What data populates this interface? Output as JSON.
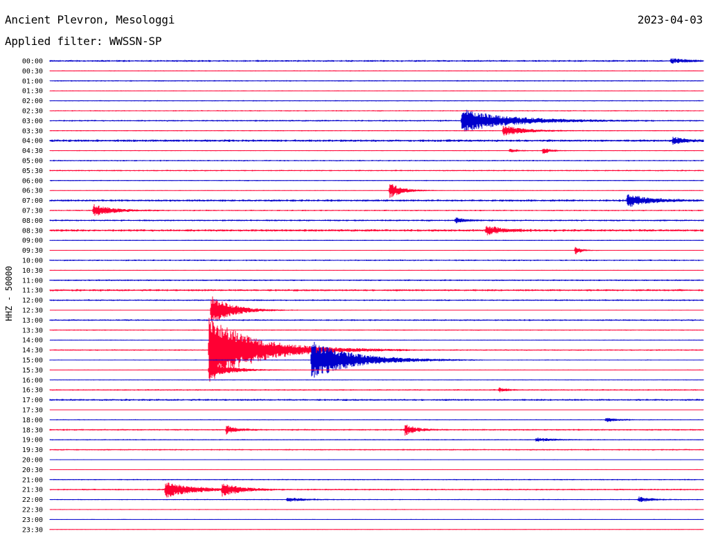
{
  "header": {
    "station": "Ancient Plevron, Mesologgi",
    "date": "2023-04-03",
    "filter": "Applied filter: WWSSN-SP"
  },
  "chart_data": {
    "type": "line",
    "title": "Ancient Plevron, Mesologgi",
    "subtitle": "Applied filter: WWSSN-SP",
    "ylabel": "HHZ - 50000",
    "row_labels": [
      "00:00",
      "00:30",
      "01:00",
      "01:30",
      "02:00",
      "02:30",
      "03:00",
      "03:30",
      "04:00",
      "04:30",
      "05:00",
      "05:30",
      "06:00",
      "06:30",
      "07:00",
      "07:30",
      "08:00",
      "08:30",
      "09:00",
      "09:30",
      "10:00",
      "10:30",
      "11:00",
      "11:30",
      "12:00",
      "12:30",
      "13:00",
      "13:30",
      "14:00",
      "14:30",
      "15:00",
      "15:30",
      "16:00",
      "16:30",
      "17:00",
      "17:30",
      "18:00",
      "18:30",
      "19:00",
      "19:30",
      "20:00",
      "20:30",
      "21:00",
      "21:30",
      "22:00",
      "22:30",
      "23:00",
      "23:30"
    ],
    "colors": {
      "even_rows": "#0000cc",
      "odd_rows": "#ff0033"
    },
    "row_minutes": 30,
    "noise_level": [
      1.2,
      0.6,
      0.8,
      0.5,
      0.7,
      0.8,
      1.0,
      0.7,
      1.5,
      0.6,
      0.9,
      0.9,
      0.7,
      0.5,
      1.4,
      0.9,
      1.1,
      1.5,
      0.7,
      0.4,
      1.0,
      0.5,
      1.0,
      1.3,
      1.0,
      0.5,
      1.0,
      0.7,
      0.5,
      0.9,
      0.6,
      0.5,
      0.5,
      0.9,
      1.2,
      0.4,
      0.6,
      1.0,
      0.7,
      0.9,
      0.5,
      0.4,
      0.8,
      1.0,
      0.7,
      0.6,
      0.5,
      0.5
    ],
    "events": [
      {
        "row": "00:00",
        "minute": 28.5,
        "amplitude": 3,
        "duration": 0.8
      },
      {
        "row": "03:00",
        "minute": 18.9,
        "amplitude": 17,
        "duration": 2.2
      },
      {
        "row": "03:30",
        "minute": 20.8,
        "amplitude": 8,
        "duration": 1.0
      },
      {
        "row": "04:00",
        "minute": 28.6,
        "amplitude": 5,
        "duration": 0.6
      },
      {
        "row": "04:30",
        "minute": 21.1,
        "amplitude": 3,
        "duration": 0.4
      },
      {
        "row": "04:30",
        "minute": 22.6,
        "amplitude": 5,
        "duration": 0.4
      },
      {
        "row": "06:30",
        "minute": 15.6,
        "amplitude": 11,
        "duration": 0.6
      },
      {
        "row": "07:00",
        "minute": 26.5,
        "amplitude": 9,
        "duration": 1.0
      },
      {
        "row": "07:30",
        "minute": 2.0,
        "amplitude": 9,
        "duration": 0.9
      },
      {
        "row": "08:00",
        "minute": 18.6,
        "amplitude": 4,
        "duration": 0.5
      },
      {
        "row": "08:30",
        "minute": 20.0,
        "amplitude": 6,
        "duration": 0.9
      },
      {
        "row": "09:30",
        "minute": 24.1,
        "amplitude": 7,
        "duration": 0.3
      },
      {
        "row": "12:30",
        "minute": 7.4,
        "amplitude": 22,
        "duration": 1.0
      },
      {
        "row": "14:30",
        "minute": 7.3,
        "amplitude": 48,
        "duration": 2.3
      },
      {
        "row": "15:00",
        "minute": 12.0,
        "amplitude": 28,
        "duration": 2.0
      },
      {
        "row": "15:30",
        "minute": 7.3,
        "amplitude": 12,
        "duration": 1.0
      },
      {
        "row": "16:30",
        "minute": 20.6,
        "amplitude": 3,
        "duration": 0.4
      },
      {
        "row": "18:00",
        "minute": 25.5,
        "amplitude": 3,
        "duration": 0.6
      },
      {
        "row": "18:30",
        "minute": 8.1,
        "amplitude": 6,
        "duration": 0.5
      },
      {
        "row": "18:30",
        "minute": 16.3,
        "amplitude": 8,
        "duration": 0.5
      },
      {
        "row": "19:00",
        "minute": 22.3,
        "amplitude": 3,
        "duration": 0.8
      },
      {
        "row": "21:30",
        "minute": 5.3,
        "amplitude": 12,
        "duration": 1.2
      },
      {
        "row": "21:30",
        "minute": 7.9,
        "amplitude": 9,
        "duration": 0.8
      },
      {
        "row": "22:00",
        "minute": 10.9,
        "amplitude": 3,
        "duration": 0.8
      },
      {
        "row": "22:00",
        "minute": 27.0,
        "amplitude": 4,
        "duration": 0.6
      }
    ]
  }
}
